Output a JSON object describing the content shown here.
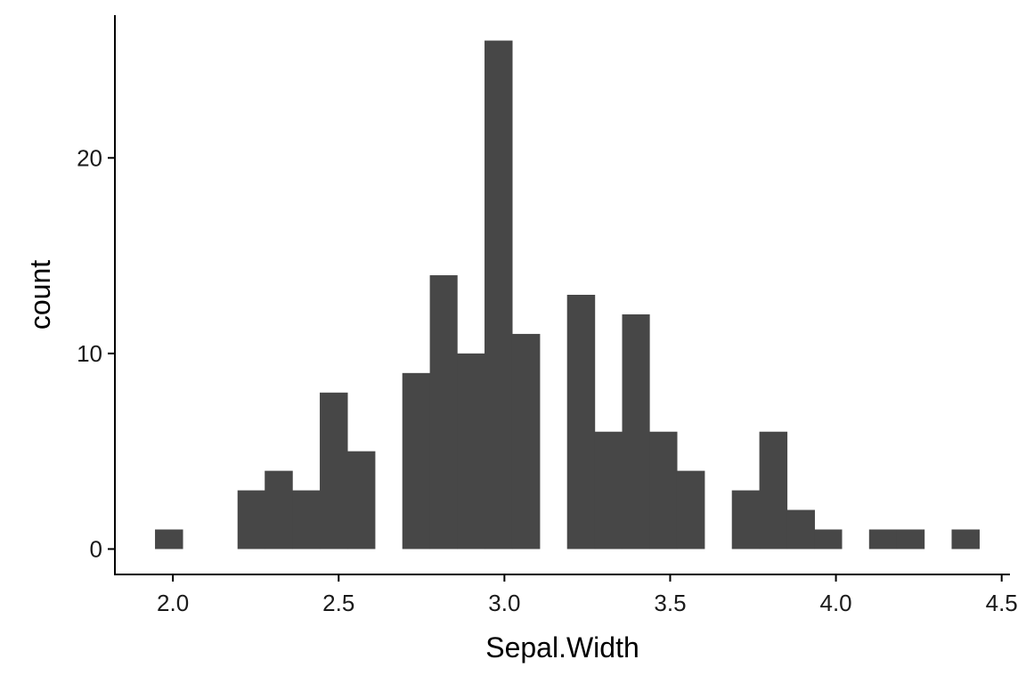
{
  "chart_data": {
    "type": "bar",
    "subtype": "histogram",
    "xlabel": "Sepal.Width",
    "ylabel": "count",
    "xlim": [
      1.825,
      4.525
    ],
    "ylim": [
      -1.3,
      27.3
    ],
    "x_ticks": [
      {
        "value": 2.0,
        "label": "2.0"
      },
      {
        "value": 2.5,
        "label": "2.5"
      },
      {
        "value": 3.0,
        "label": "3.0"
      },
      {
        "value": 3.5,
        "label": "3.5"
      },
      {
        "value": 4.0,
        "label": "4.0"
      },
      {
        "value": 4.5,
        "label": "4.5"
      }
    ],
    "y_ticks": [
      {
        "value": 0,
        "label": "0"
      },
      {
        "value": 10,
        "label": "10"
      },
      {
        "value": 20,
        "label": "20"
      }
    ],
    "bin_width": 0.0828,
    "bins": [
      {
        "x_start": 1.946,
        "x_end": 2.029,
        "count": 1
      },
      {
        "x_start": 2.029,
        "x_end": 2.112,
        "count": 0
      },
      {
        "x_start": 2.112,
        "x_end": 2.195,
        "count": 0
      },
      {
        "x_start": 2.195,
        "x_end": 2.277,
        "count": 3
      },
      {
        "x_start": 2.277,
        "x_end": 2.36,
        "count": 4
      },
      {
        "x_start": 2.36,
        "x_end": 2.443,
        "count": 3
      },
      {
        "x_start": 2.443,
        "x_end": 2.526,
        "count": 8
      },
      {
        "x_start": 2.526,
        "x_end": 2.609,
        "count": 5
      },
      {
        "x_start": 2.609,
        "x_end": 2.692,
        "count": 0
      },
      {
        "x_start": 2.692,
        "x_end": 2.775,
        "count": 9
      },
      {
        "x_start": 2.775,
        "x_end": 2.857,
        "count": 14
      },
      {
        "x_start": 2.857,
        "x_end": 2.94,
        "count": 10
      },
      {
        "x_start": 2.94,
        "x_end": 3.023,
        "count": 26
      },
      {
        "x_start": 3.023,
        "x_end": 3.106,
        "count": 11
      },
      {
        "x_start": 3.106,
        "x_end": 3.189,
        "count": 0
      },
      {
        "x_start": 3.189,
        "x_end": 3.272,
        "count": 13
      },
      {
        "x_start": 3.272,
        "x_end": 3.355,
        "count": 6
      },
      {
        "x_start": 3.355,
        "x_end": 3.437,
        "count": 12
      },
      {
        "x_start": 3.437,
        "x_end": 3.52,
        "count": 6
      },
      {
        "x_start": 3.52,
        "x_end": 3.603,
        "count": 4
      },
      {
        "x_start": 3.603,
        "x_end": 3.686,
        "count": 0
      },
      {
        "x_start": 3.686,
        "x_end": 3.769,
        "count": 3
      },
      {
        "x_start": 3.769,
        "x_end": 3.852,
        "count": 6
      },
      {
        "x_start": 3.852,
        "x_end": 3.935,
        "count": 2
      },
      {
        "x_start": 3.935,
        "x_end": 4.017,
        "count": 1
      },
      {
        "x_start": 4.017,
        "x_end": 4.1,
        "count": 0
      },
      {
        "x_start": 4.1,
        "x_end": 4.183,
        "count": 1
      },
      {
        "x_start": 4.183,
        "x_end": 4.266,
        "count": 1
      },
      {
        "x_start": 4.266,
        "x_end": 4.349,
        "count": 0
      },
      {
        "x_start": 4.349,
        "x_end": 4.432,
        "count": 1
      }
    ],
    "bar_color": "#474747",
    "grid": false,
    "legend": "none"
  }
}
